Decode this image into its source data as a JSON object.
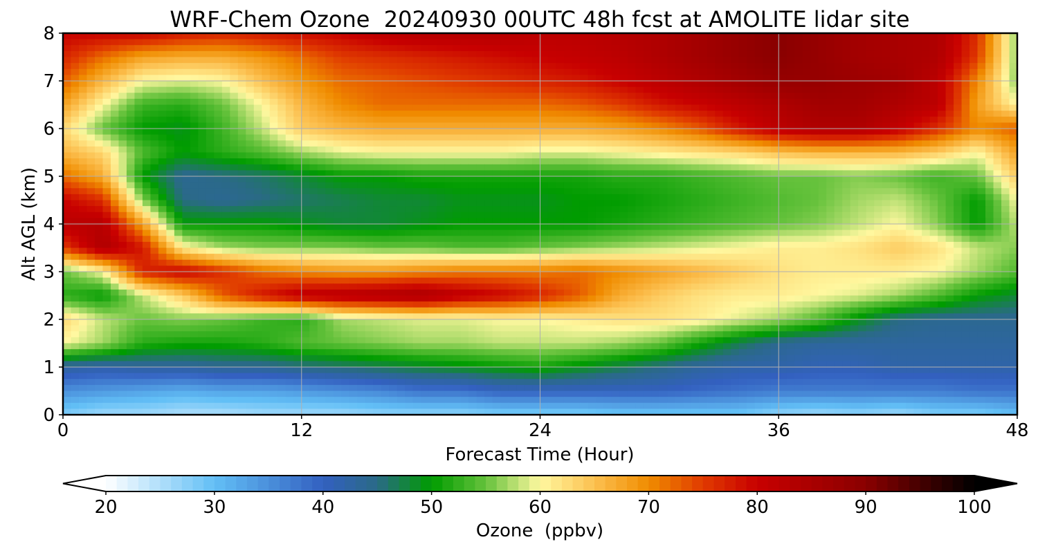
{
  "chart_data": {
    "type": "heatmap",
    "title": "WRF-Chem Ozone  20240930 00UTC 48h fcst at AMOLITE lidar site",
    "xlabel": "Forecast Time (Hour)",
    "ylabel": "Alt AGL (km)",
    "xlim": [
      0,
      48
    ],
    "ylim": [
      0,
      8
    ],
    "x_ticks": [
      0,
      12,
      24,
      36,
      48
    ],
    "y_ticks": [
      0,
      1,
      2,
      3,
      4,
      5,
      6,
      7,
      8
    ],
    "grid": true,
    "colorbar": {
      "label": "Ozone  (ppbv)",
      "range": [
        20,
        100
      ],
      "ticks": [
        20,
        30,
        40,
        50,
        60,
        70,
        80,
        90,
        100
      ],
      "extend": "both",
      "orientation": "horizontal",
      "stops": [
        {
          "value": 20,
          "color": "#ffffff"
        },
        {
          "value": 30,
          "color": "#62bff6"
        },
        {
          "value": 40,
          "color": "#3360c0"
        },
        {
          "value": 45,
          "color": "#2a6a86"
        },
        {
          "value": 50,
          "color": "#009c00"
        },
        {
          "value": 55,
          "color": "#66c23c"
        },
        {
          "value": 60,
          "color": "#fff8a0"
        },
        {
          "value": 65,
          "color": "#fcc050"
        },
        {
          "value": 70,
          "color": "#f08c00"
        },
        {
          "value": 75,
          "color": "#e03a00"
        },
        {
          "value": 80,
          "color": "#c80000"
        },
        {
          "value": 90,
          "color": "#8a0000"
        },
        {
          "value": 100,
          "color": "#000000"
        }
      ]
    },
    "x_hours": [
      0,
      2,
      4,
      6,
      8,
      10,
      12,
      14,
      16,
      18,
      20,
      22,
      24,
      26,
      28,
      30,
      32,
      34,
      36,
      38,
      40,
      42,
      44,
      46,
      48
    ],
    "y_km": [
      0,
      0.5,
      1,
      1.5,
      2,
      2.5,
      3,
      3.5,
      4,
      4.5,
      5,
      5.5,
      6,
      6.5,
      7,
      7.5,
      8
    ],
    "z_ppbv": [
      [
        28,
        26,
        26,
        25,
        25,
        26,
        26,
        26,
        27,
        27,
        27,
        28,
        28,
        28,
        29,
        29,
        29,
        29,
        27,
        26,
        27,
        26,
        28,
        28,
        30
      ],
      [
        35,
        34,
        33,
        32,
        33,
        33,
        34,
        35,
        36,
        38,
        38,
        40,
        40,
        40,
        40,
        40,
        39,
        38,
        37,
        37,
        37,
        37,
        37,
        38,
        38
      ],
      [
        43,
        42,
        43,
        43,
        44,
        44,
        45,
        46,
        47,
        48,
        49,
        50,
        51,
        49,
        47,
        45,
        43,
        42,
        42,
        41,
        41,
        42,
        42,
        42,
        42
      ],
      [
        60,
        57,
        52,
        51,
        51,
        52,
        54,
        55,
        56,
        57,
        57,
        58,
        58,
        58,
        57,
        55,
        51,
        47,
        44,
        43,
        43,
        43,
        43,
        43,
        43
      ],
      [
        63,
        58,
        55,
        56,
        55,
        53,
        52,
        57,
        58,
        59,
        59,
        60,
        60,
        61,
        62,
        62,
        61,
        59,
        57,
        54,
        49,
        45,
        44,
        44,
        44
      ],
      [
        52,
        50,
        58,
        64,
        73,
        78,
        82,
        83,
        84,
        85,
        82,
        80,
        77,
        73,
        67,
        64,
        62,
        61,
        61,
        60,
        59,
        57,
        54,
        50,
        48
      ],
      [
        55,
        60,
        77,
        80,
        76,
        72,
        70,
        69,
        69,
        70,
        71,
        71,
        71,
        72,
        70,
        68,
        66,
        64,
        62,
        61,
        61,
        61,
        60,
        57,
        54
      ],
      [
        75,
        84,
        78,
        61,
        57,
        56,
        56,
        56,
        55,
        55,
        54,
        54,
        55,
        56,
        57,
        58,
        59,
        60,
        61,
        61,
        62,
        64,
        62,
        58,
        56
      ],
      [
        82,
        83,
        68,
        50,
        50,
        50,
        49,
        48,
        48,
        49,
        50,
        50,
        50,
        50,
        51,
        52,
        53,
        54,
        55,
        56,
        58,
        60,
        56,
        50,
        58
      ],
      [
        80,
        76,
        56,
        45,
        44,
        45,
        46,
        47,
        48,
        48,
        49,
        49,
        49,
        50,
        50,
        51,
        52,
        53,
        54,
        55,
        57,
        58,
        55,
        50,
        60
      ],
      [
        72,
        67,
        50,
        44,
        45,
        46,
        48,
        50,
        50,
        51,
        51,
        51,
        51,
        51,
        52,
        52,
        53,
        54,
        55,
        55,
        56,
        55,
        53,
        55,
        64
      ],
      [
        66,
        63,
        54,
        50,
        52,
        54,
        57,
        59,
        60,
        60,
        60,
        60,
        59,
        59,
        60,
        61,
        62,
        63,
        65,
        66,
        66,
        66,
        64,
        60,
        68
      ],
      [
        63,
        55,
        50,
        49,
        53,
        58,
        64,
        66,
        67,
        67,
        67,
        67,
        67,
        67,
        68,
        70,
        73,
        78,
        82,
        84,
        84,
        81,
        76,
        70,
        73
      ],
      [
        68,
        60,
        53,
        52,
        55,
        60,
        66,
        70,
        72,
        72,
        72,
        72,
        72,
        73,
        75,
        78,
        80,
        82,
        84,
        86,
        86,
        84,
        82,
        68,
        60
      ],
      [
        73,
        66,
        60,
        59,
        60,
        65,
        69,
        72,
        73,
        74,
        75,
        76,
        77,
        78,
        80,
        82,
        84,
        86,
        88,
        88,
        87,
        86,
        82,
        70,
        56
      ],
      [
        77,
        72,
        68,
        67,
        67,
        69,
        72,
        75,
        76,
        77,
        78,
        79,
        80,
        81,
        82,
        84,
        86,
        88,
        90,
        88,
        86,
        85,
        84,
        75,
        56
      ],
      [
        80,
        80,
        80,
        78,
        77,
        78,
        79,
        80,
        82,
        83,
        83,
        83,
        82,
        82,
        83,
        84,
        86,
        88,
        90,
        88,
        86,
        85,
        84,
        76,
        56
      ]
    ]
  }
}
